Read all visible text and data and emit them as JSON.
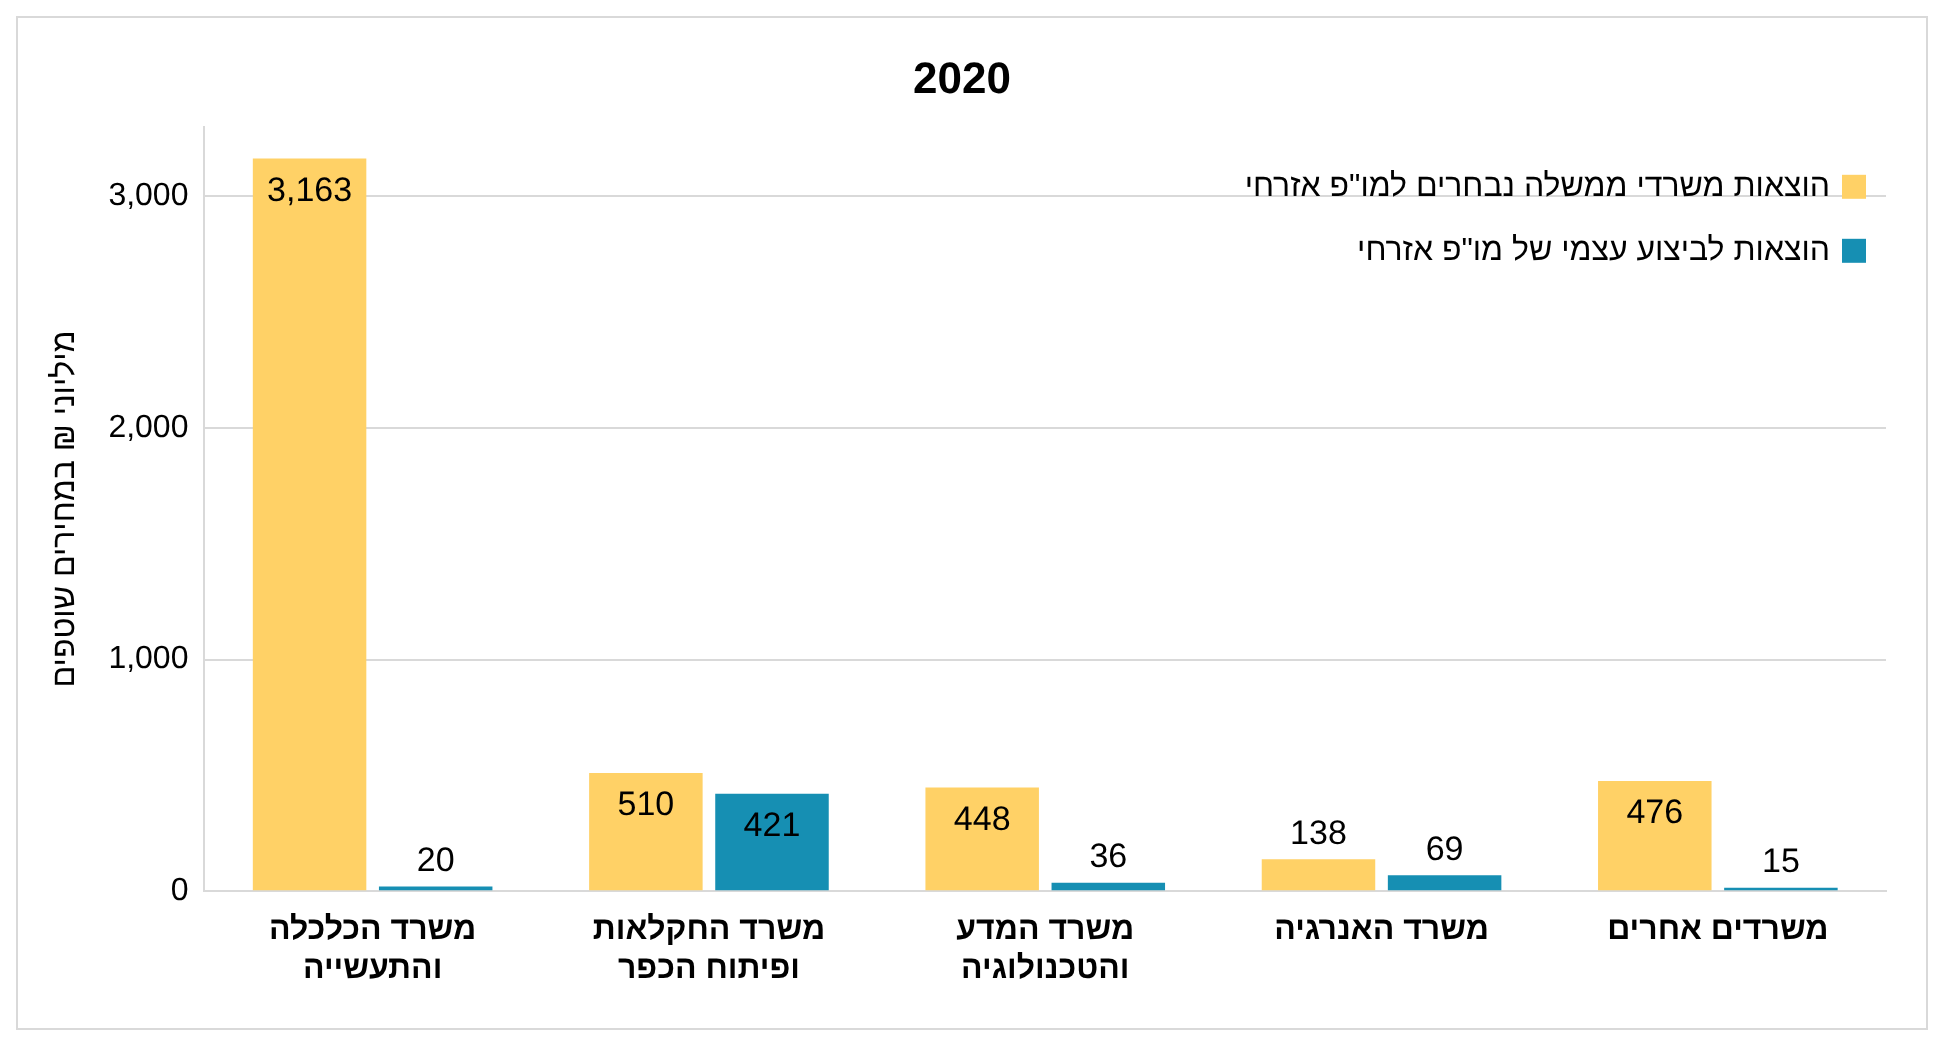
{
  "chart_data": {
    "type": "bar",
    "title": "2020",
    "ylabel": "מיליוני ₪ במחירים שוטפים",
    "categories": [
      "משרד הכלכלה\nוהתעשייה",
      "משרד החקלאות\nופיתוח הכפר",
      "משרד המדע\nוהטכנולוגיה",
      "משרד האנרגיה",
      "משרדים אחרים"
    ],
    "series": [
      {
        "name": "הוצאות משרדי ממשלה נבחרים למו\"פ אזרחי",
        "color": "#ffd166",
        "values": [
          3163,
          510,
          448,
          138,
          476
        ],
        "value_labels": [
          "3,163",
          "510",
          "448",
          "138",
          "476"
        ]
      },
      {
        "name": "הוצאות לביצוע עצמי של מו\"פ אזרחי",
        "color": "#168fb3",
        "values": [
          20,
          421,
          36,
          69,
          15
        ],
        "value_labels": [
          "20",
          "421",
          "36",
          "69",
          "15"
        ]
      }
    ],
    "ylim": [
      0,
      3300
    ],
    "yticks": [
      0,
      {
        "value": 1000,
        "label": "1,000"
      },
      {
        "value": 2000,
        "label": "2,000"
      },
      {
        "value": 3000,
        "label": "3,000"
      }
    ],
    "grid": "y",
    "legend": "top right"
  }
}
